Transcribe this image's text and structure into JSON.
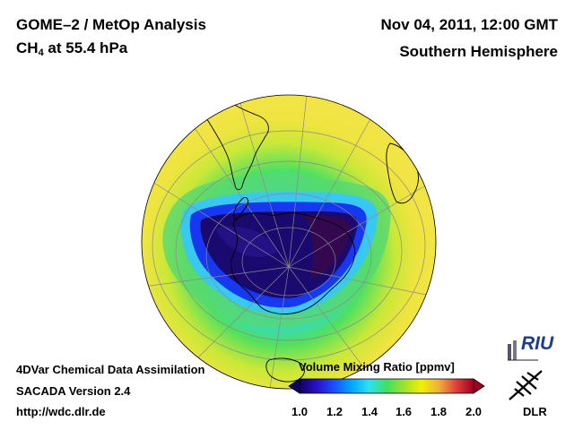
{
  "header": {
    "title_line1": "GOME–2 / MetOp Analysis",
    "title_line2_prefix": "CH",
    "title_line2_sub": "4",
    "title_line2_suffix": " at 55.4 hPa",
    "date": "Nov 04, 2011, 12:00 GMT",
    "hemisphere": "Southern Hemisphere"
  },
  "footer": {
    "line1": "4DVar Chemical Data Assimilation",
    "line2": "SACADA Version 2.4",
    "line3": "http://wdc.dlr.de"
  },
  "colorbar": {
    "title": "Volume Mixing Ratio [ppmv]",
    "min": 1.0,
    "max": 2.0,
    "ticks": [
      "1.0",
      "1.2",
      "1.4",
      "1.6",
      "1.8",
      "2.0"
    ],
    "colors": [
      "#100060",
      "#2a10c8",
      "#1a50ff",
      "#00a8ff",
      "#30e0f0",
      "#40e060",
      "#a0e030",
      "#f0f000",
      "#f0b040",
      "#e04040",
      "#a00020"
    ]
  },
  "logos": {
    "riu": "RIU",
    "dlr": "DLR"
  },
  "map": {
    "projection": "orthographic",
    "center": "South Pole",
    "field": "CH4"
  }
}
